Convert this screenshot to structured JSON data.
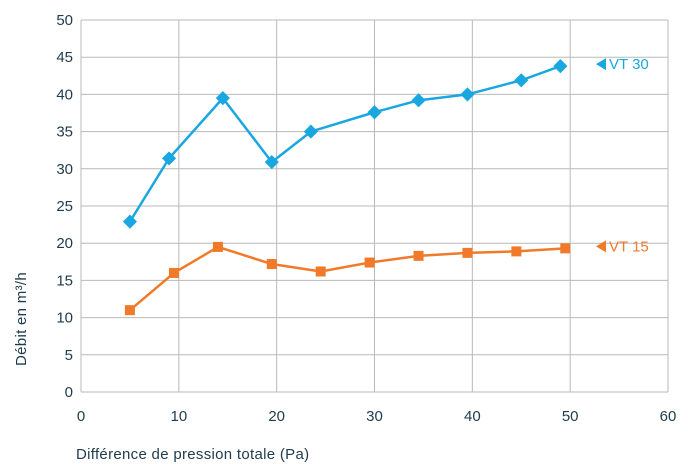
{
  "chart_data": {
    "type": "line",
    "xlabel": "Différence de pression totale (Pa)",
    "ylabel": "Débit en m³/h",
    "xlim": [
      0,
      60
    ],
    "ylim": [
      0,
      50
    ],
    "x_ticks": [
      "0",
      "10",
      "20",
      "30",
      "40",
      "50",
      "60"
    ],
    "y_ticks": [
      "0",
      "5",
      "10",
      "15",
      "20",
      "25",
      "30",
      "35",
      "40",
      "45",
      "50"
    ],
    "grid": true,
    "series": [
      {
        "name": "VT 30",
        "color": "#1aa7e0",
        "marker": "diamond",
        "points": [
          [
            5,
            22.9
          ],
          [
            9,
            31.4
          ],
          [
            14.5,
            39.5
          ],
          [
            19.5,
            30.9
          ],
          [
            23.5,
            35.0
          ],
          [
            30,
            37.6
          ],
          [
            34.5,
            39.2
          ],
          [
            39.5,
            40.0
          ],
          [
            45,
            41.9
          ],
          [
            49,
            43.8
          ]
        ]
      },
      {
        "name": "VT 15",
        "color": "#f07a2a",
        "marker": "square",
        "points": [
          [
            5,
            11.0
          ],
          [
            9.5,
            16.0
          ],
          [
            14,
            19.5
          ],
          [
            19.5,
            17.2
          ],
          [
            24.5,
            16.2
          ],
          [
            29.5,
            17.4
          ],
          [
            34.5,
            18.3
          ],
          [
            39.5,
            18.7
          ],
          [
            44.5,
            18.9
          ],
          [
            49.5,
            19.3
          ]
        ]
      }
    ]
  }
}
